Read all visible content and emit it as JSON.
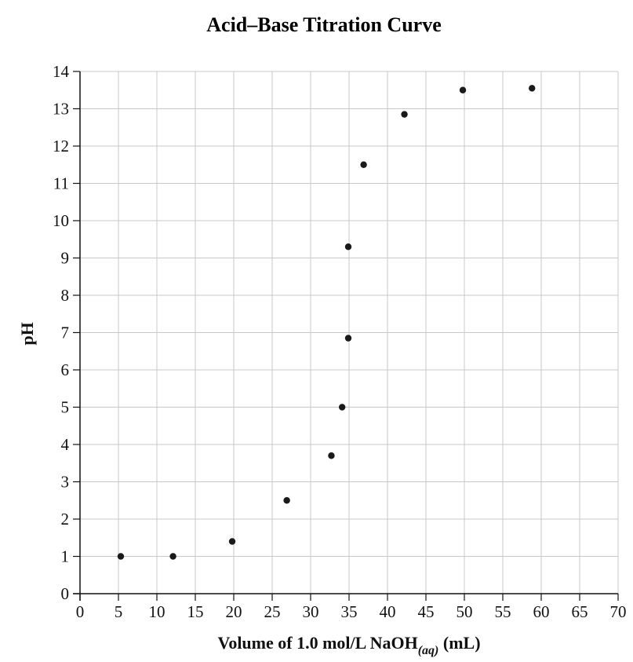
{
  "chart_data": {
    "type": "scatter",
    "title": "Acid–Base Titration Curve",
    "xlabel": "Volume of 1.0 mol/L NaOH",
    "xlabel_subscript": "(aq)",
    "xlabel_suffix": " (mL)",
    "ylabel": "pH",
    "xlim": [
      0,
      70
    ],
    "ylim": [
      0,
      14
    ],
    "x_ticks": [
      0,
      5,
      10,
      15,
      20,
      25,
      30,
      35,
      40,
      45,
      50,
      55,
      60,
      65,
      70
    ],
    "y_ticks": [
      0,
      1,
      2,
      3,
      4,
      5,
      6,
      7,
      8,
      9,
      10,
      11,
      12,
      13,
      14
    ],
    "grid": true,
    "point_color": "#1a1a1a",
    "points": [
      {
        "x": 5.3,
        "y": 1.0
      },
      {
        "x": 12.1,
        "y": 1.0
      },
      {
        "x": 19.8,
        "y": 1.4
      },
      {
        "x": 26.9,
        "y": 2.5
      },
      {
        "x": 32.7,
        "y": 3.7
      },
      {
        "x": 34.1,
        "y": 5.0
      },
      {
        "x": 34.9,
        "y": 6.85
      },
      {
        "x": 34.9,
        "y": 9.3
      },
      {
        "x": 36.9,
        "y": 11.5
      },
      {
        "x": 42.2,
        "y": 12.85
      },
      {
        "x": 49.8,
        "y": 13.5
      },
      {
        "x": 58.8,
        "y": 13.55
      }
    ]
  }
}
